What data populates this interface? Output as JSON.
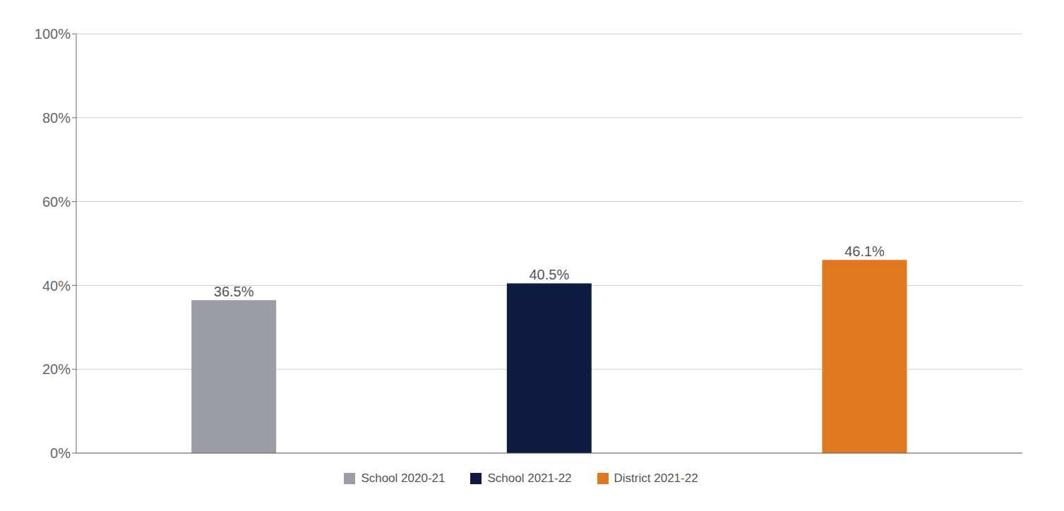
{
  "chart_data": {
    "type": "bar",
    "categories": [
      "School 2020-21",
      "School 2021-22",
      "District 2021-22"
    ],
    "values": [
      36.5,
      40.5,
      46.1
    ],
    "value_labels": [
      "36.5%",
      "40.5%",
      "46.1%"
    ],
    "colors": [
      "#9B9EA4",
      "#0D1B40",
      "#E07820"
    ],
    "ylim": [
      0,
      100
    ],
    "yticks": [
      {
        "value": 0,
        "label": "0%"
      },
      {
        "value": 20,
        "label": "20%"
      },
      {
        "value": 40,
        "label": "40%"
      },
      {
        "value": 60,
        "label": "60%"
      },
      {
        "value": 80,
        "label": "80%"
      },
      {
        "value": 100,
        "label": "100%"
      }
    ],
    "grid": true,
    "data_labels": true,
    "tick_labels": "y",
    "legend": "bottom"
  }
}
